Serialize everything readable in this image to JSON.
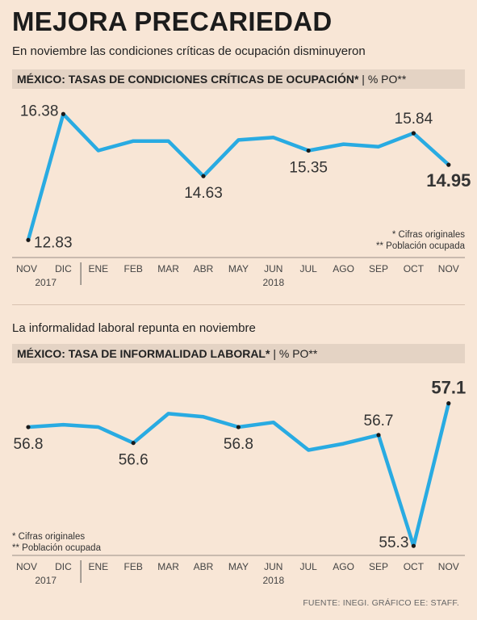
{
  "header": {
    "title": "MEJORA PRECARIEDAD",
    "subtitle": "En noviembre las condiciones críticas de ocupación disminuyeron"
  },
  "chart1": {
    "band_bold": "MÉXICO: TASAS DE CONDICIONES CRÍTICAS DE OCUPACIÓN*",
    "band_rest": " | % PO**",
    "note1": "* Cifras originales",
    "note2": "** Población ocupada"
  },
  "chart2": {
    "subtitle": "La informalidad laboral repunta en noviembre",
    "band_bold": "MÉXICO: TASA DE INFORMALIDAD LABORAL*",
    "band_rest": " | % PO**",
    "note1": "* Cifras originales",
    "note2": "** Población ocupada"
  },
  "footer": {
    "source": "FUENTE: INEGI. GRÁFICO EE: STAFF."
  },
  "colors": {
    "line": "#29abe2",
    "marker": "#1a1a1a",
    "background": "#f8e6d6",
    "band": "#e4d3c4"
  },
  "chart_data": [
    {
      "type": "line",
      "title": "MÉXICO: TASAS DE CONDICIONES CRÍTICAS DE OCUPACIÓN* | % PO**",
      "categories": [
        "NOV",
        "DIC",
        "ENE",
        "FEB",
        "MAR",
        "ABR",
        "MAY",
        "JUN",
        "JUL",
        "AGO",
        "SEP",
        "OCT",
        "NOV"
      ],
      "year_labels": [
        {
          "label": "2017",
          "category_index": 0.5
        },
        {
          "label": "2018",
          "category_index": 7
        }
      ],
      "series": [
        {
          "values": [
            12.83,
            16.38,
            15.35,
            15.62,
            15.62,
            14.63,
            15.65,
            15.72,
            15.35,
            15.53,
            15.46,
            15.84,
            14.95
          ]
        }
      ],
      "annotations": [
        {
          "index": 0,
          "text": "12.83",
          "pos": "right",
          "bold": false
        },
        {
          "index": 1,
          "text": "16.38",
          "pos": "left",
          "bold": false
        },
        {
          "index": 5,
          "text": "14.63",
          "pos": "below",
          "bold": false
        },
        {
          "index": 8,
          "text": "15.35",
          "pos": "below",
          "bold": false
        },
        {
          "index": 11,
          "text": "15.84",
          "pos": "above",
          "bold": false
        },
        {
          "index": 12,
          "text": "14.95",
          "pos": "below",
          "bold": true
        }
      ],
      "ylim": [
        12.7,
        16.5
      ],
      "grid": false
    },
    {
      "type": "line",
      "title": "MÉXICO: TASA DE INFORMALIDAD LABORAL* | % PO**",
      "categories": [
        "NOV",
        "DIC",
        "ENE",
        "FEB",
        "MAR",
        "ABR",
        "MAY",
        "JUN",
        "JUL",
        "AGO",
        "SEP",
        "OCT",
        "NOV"
      ],
      "year_labels": [
        {
          "label": "2017",
          "category_index": 0.5
        },
        {
          "label": "2018",
          "category_index": 7
        }
      ],
      "series": [
        {
          "values": [
            56.8,
            56.83,
            56.8,
            56.6,
            56.97,
            56.93,
            56.8,
            56.86,
            56.51,
            56.59,
            56.7,
            55.3,
            57.1
          ]
        }
      ],
      "annotations": [
        {
          "index": 0,
          "text": "56.8",
          "pos": "below",
          "bold": false
        },
        {
          "index": 3,
          "text": "56.6",
          "pos": "below",
          "bold": false
        },
        {
          "index": 6,
          "text": "56.8",
          "pos": "below",
          "bold": false
        },
        {
          "index": 10,
          "text": "56.7",
          "pos": "above",
          "bold": false
        },
        {
          "index": 11,
          "text": "55.3",
          "pos": "left",
          "bold": false
        },
        {
          "index": 12,
          "text": "57.1",
          "pos": "above",
          "bold": true
        }
      ],
      "ylim": [
        55.2,
        57.3
      ],
      "grid": false
    }
  ]
}
